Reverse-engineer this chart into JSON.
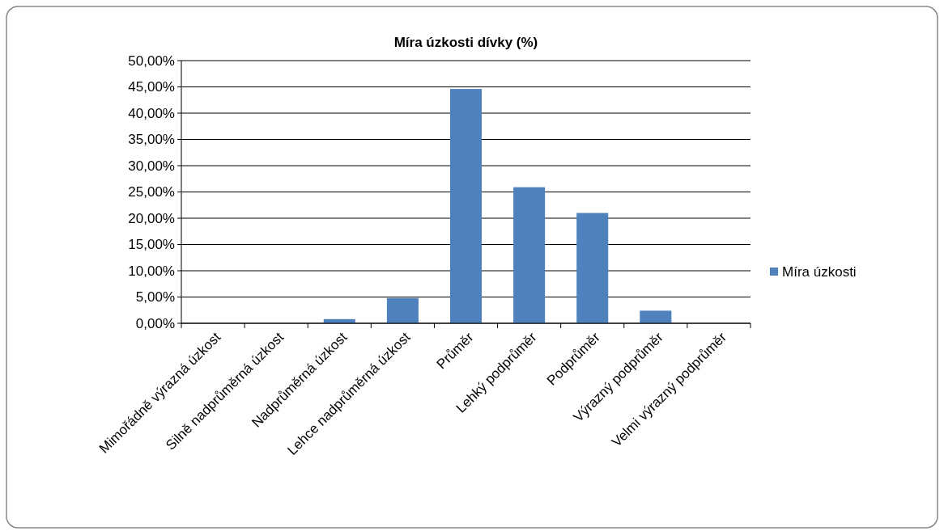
{
  "chart_data": {
    "type": "bar",
    "title": "Míra úzkosti dívky (%)",
    "categories": [
      "Mimořádně výrazná úzkost",
      "Silně nadprůměrná úzkost",
      "Nadprůměrná úzkost",
      "Lehce nadprůměrná úzkost",
      "Průměr",
      "Lehký podprůměr",
      "Podprůměr",
      "Výrazný podprůměr",
      "Velmi výrazný podprůměr"
    ],
    "series": [
      {
        "name": "Míra úzkosti",
        "color": "#4f81bd",
        "values": [
          0,
          0,
          0.8,
          4.8,
          44.6,
          25.9,
          21.0,
          2.4,
          0
        ]
      }
    ],
    "ylim": [
      0,
      50
    ],
    "yticks": [
      {
        "value": 0,
        "label": "0,00%"
      },
      {
        "value": 5,
        "label": "5,00%"
      },
      {
        "value": 10,
        "label": "10,00%"
      },
      {
        "value": 15,
        "label": "15,00%"
      },
      {
        "value": 20,
        "label": "20,00%"
      },
      {
        "value": 25,
        "label": "25,00%"
      },
      {
        "value": 30,
        "label": "30,00%"
      },
      {
        "value": 35,
        "label": "35,00%"
      },
      {
        "value": 40,
        "label": "40,00%"
      },
      {
        "value": 45,
        "label": "45,00%"
      },
      {
        "value": 50,
        "label": "50,00%"
      }
    ],
    "grid": "y",
    "legend": "right"
  }
}
